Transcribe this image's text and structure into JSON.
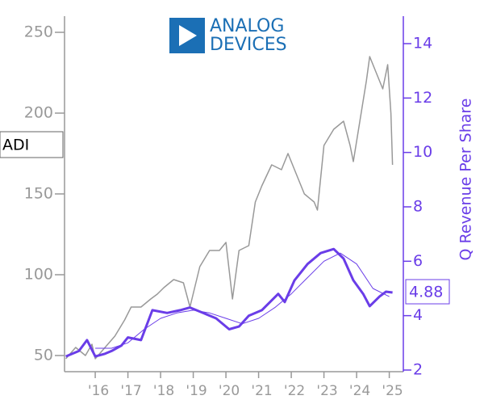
{
  "chart_data": {
    "type": "line",
    "ticker": "ADI",
    "logo": [
      "ANALOG",
      "DEVICES"
    ],
    "y2_label": "Q Revenue Per Share",
    "current_value": 4.88,
    "xlim": [
      2015.06,
      2025.43
    ],
    "xticks": [
      {
        "value": 2016,
        "label": "'16"
      },
      {
        "value": 2017,
        "label": "'17"
      },
      {
        "value": 2018,
        "label": "'18"
      },
      {
        "value": 2019,
        "label": "'19"
      },
      {
        "value": 2020,
        "label": "'20"
      },
      {
        "value": 2021,
        "label": "'21"
      },
      {
        "value": 2022,
        "label": "'22"
      },
      {
        "value": 2023,
        "label": "'23"
      },
      {
        "value": 2024,
        "label": "'24"
      },
      {
        "value": 2025,
        "label": "'25"
      }
    ],
    "ylim": [
      40,
      260
    ],
    "yticks": [
      50,
      100,
      150,
      200,
      250
    ],
    "y2lim": [
      1.94,
      15.01
    ],
    "y2ticks": [
      2,
      4,
      6,
      8,
      10,
      12,
      14
    ],
    "series": [
      {
        "color": "#999999",
        "axis": "y",
        "width": 1.5,
        "x": [
          2015.1,
          2015.4,
          2015.7,
          2015.9,
          2016.0,
          2016.3,
          2016.6,
          2016.9,
          2017.1,
          2017.4,
          2017.7,
          2017.9,
          2018.1,
          2018.4,
          2018.7,
          2018.9,
          2019.2,
          2019.5,
          2019.8,
          2020.0,
          2020.2,
          2020.4,
          2020.7,
          2020.9,
          2021.1,
          2021.4,
          2021.7,
          2021.9,
          2022.1,
          2022.4,
          2022.7,
          2022.8,
          2023.0,
          2023.3,
          2023.6,
          2023.8,
          2023.9,
          2024.1,
          2024.3,
          2024.4,
          2024.6,
          2024.8,
          2024.95,
          2025.05,
          2025.1
        ],
        "values": [
          48,
          55,
          50,
          57,
          48,
          55,
          62,
          72,
          80,
          80,
          85,
          88,
          92,
          97,
          95,
          80,
          105,
          115,
          115,
          120,
          85,
          115,
          118,
          145,
          155,
          168,
          165,
          175,
          165,
          150,
          145,
          140,
          180,
          190,
          195,
          180,
          170,
          195,
          220,
          235,
          225,
          215,
          230,
          200,
          168
        ]
      },
      {
        "color": "#6a3de8",
        "axis": "y2",
        "width": 3,
        "x": [
          2015.1,
          2015.5,
          2015.75,
          2016.0,
          2016.3,
          2016.5,
          2016.8,
          2017.0,
          2017.4,
          2017.75,
          2018.2,
          2018.6,
          2018.9,
          2019.3,
          2019.7,
          2020.1,
          2020.4,
          2020.7,
          2021.1,
          2021.6,
          2021.8,
          2022.1,
          2022.5,
          2022.9,
          2023.3,
          2023.6,
          2023.9,
          2024.2,
          2024.4,
          2024.7,
          2024.9,
          2025.1
        ],
        "values": [
          2.5,
          2.7,
          3.1,
          2.5,
          2.6,
          2.7,
          2.9,
          3.2,
          3.1,
          4.2,
          4.1,
          4.2,
          4.3,
          4.1,
          3.9,
          3.5,
          3.6,
          4.0,
          4.2,
          4.8,
          4.5,
          5.3,
          5.9,
          6.3,
          6.45,
          6.1,
          5.3,
          4.8,
          4.35,
          4.7,
          4.88,
          4.85
        ]
      },
      {
        "color": "#6a3de8",
        "axis": "y2",
        "width": 1,
        "x": [
          2016.0,
          2016.5,
          2017.0,
          2017.5,
          2018.0,
          2018.5,
          2019.0,
          2019.5,
          2020.0,
          2020.5,
          2021.0,
          2021.5,
          2022.0,
          2022.5,
          2023.0,
          2023.5,
          2024.0,
          2024.5,
          2025.0
        ],
        "values": [
          2.8,
          2.8,
          3.0,
          3.5,
          3.9,
          4.1,
          4.2,
          4.1,
          3.9,
          3.7,
          3.9,
          4.3,
          4.8,
          5.4,
          6.0,
          6.3,
          5.9,
          5.0,
          4.7
        ]
      }
    ]
  }
}
